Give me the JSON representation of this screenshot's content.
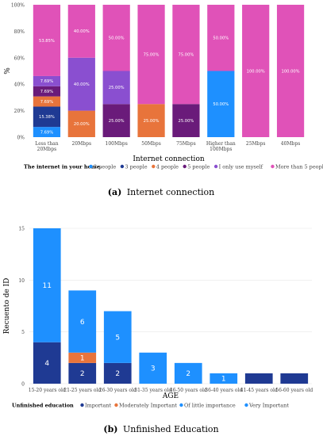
{
  "captions": {
    "a_prefix": "(a)",
    "a_text": "Internet connection",
    "b_prefix": "(b)",
    "b_text": "Unfinished Education"
  },
  "chart_data": [
    {
      "type": "bar",
      "stacked": true,
      "normalized": true,
      "xlabel": "Internet connection",
      "ylabel": "%",
      "ylim": [
        0,
        100
      ],
      "yticks": [
        "0%",
        "20%",
        "40%",
        "60%",
        "80%",
        "100%"
      ],
      "legend_title": "The internet in your home.",
      "legend_position": "bottom",
      "categories": [
        "Less than 20Mbps",
        "20Mbps",
        "100Mbps",
        "50Mbps",
        "75Mbps",
        "Higher than 100Mbps",
        "25Mbps",
        "40Mbps"
      ],
      "series": [
        {
          "name": "2 people",
          "color": "#1e90ff",
          "values": [
            7.69,
            0,
            0,
            0,
            0,
            50.0,
            0,
            0
          ],
          "labels": [
            "7.69%",
            "",
            "",
            "",
            "",
            "50.00%",
            "",
            ""
          ]
        },
        {
          "name": "3 people",
          "color": "#1f3a93",
          "values": [
            15.38,
            0,
            0,
            0,
            0,
            0,
            0,
            0
          ],
          "labels": [
            "15.38%",
            "",
            "",
            "",
            "",
            "",
            "",
            ""
          ]
        },
        {
          "name": "4 people",
          "color": "#e8743b",
          "values": [
            7.69,
            20.0,
            0,
            25.0,
            0,
            0,
            0,
            0
          ],
          "labels": [
            "7.69%",
            "20.00%",
            "",
            "25.00%",
            "",
            "",
            "",
            ""
          ]
        },
        {
          "name": "5 people",
          "color": "#6a1b7a",
          "values": [
            7.69,
            0,
            25.0,
            0,
            25.0,
            0,
            0,
            0
          ],
          "labels": [
            "7.69%",
            "",
            "25.00%",
            "",
            "25.00%",
            "",
            "",
            ""
          ]
        },
        {
          "name": "I only use myself",
          "color": "#8a4fd0",
          "values": [
            7.69,
            40.0,
            25.0,
            0,
            0,
            0,
            0,
            0
          ],
          "labels": [
            "7.69%",
            "40.00%",
            "25.00%",
            "",
            "",
            "",
            "",
            ""
          ]
        },
        {
          "name": "More than 5 people",
          "color": "#e052b8",
          "values": [
            53.85,
            40.0,
            50.0,
            75.0,
            75.0,
            50.0,
            100.0,
            100.0
          ],
          "labels": [
            "53.85%",
            "40.00%",
            "50.00%",
            "75.00%",
            "75.00%",
            "50.00%",
            "100.00%",
            "100.00%"
          ]
        }
      ]
    },
    {
      "type": "bar",
      "stacked": true,
      "xlabel": "AGE",
      "ylabel": "Recuento de ID",
      "ylim": [
        0,
        15
      ],
      "yticks": [
        "0",
        "5",
        "10",
        "15"
      ],
      "grid": true,
      "legend_title": "Unfinished education",
      "legend_position": "bottom",
      "categories": [
        "15-20 years old",
        "21-25 years old",
        "26-30 years old",
        "31-35 years old",
        "46-50 years old",
        "36-40 years old",
        "41-45 years old",
        "56-60 years old"
      ],
      "series": [
        {
          "name": "Important",
          "color": "#1f3a93",
          "values": [
            4,
            2,
            2,
            0,
            0,
            0,
            1,
            1
          ],
          "labels": [
            "4",
            "2",
            "2",
            "",
            "",
            "",
            "",
            ""
          ]
        },
        {
          "name": "Moderately Important",
          "color": "#e8743b",
          "values": [
            0,
            1,
            0,
            0,
            0,
            0,
            0,
            0
          ],
          "labels": [
            "",
            "1",
            "",
            "",
            "",
            "",
            "",
            ""
          ]
        },
        {
          "name": "Of little importance",
          "color": "#1e90ff",
          "values": [
            11,
            6,
            5,
            3,
            2,
            1,
            0,
            0
          ],
          "labels": [
            "11",
            "6",
            "5",
            "3",
            "2",
            "1",
            "",
            ""
          ]
        },
        {
          "name": "Very Important",
          "color": "#1e90ff",
          "values": [
            0,
            0,
            0,
            0,
            0,
            0,
            0,
            0
          ],
          "labels": [
            "",
            "",
            "",
            "",
            "",
            "",
            "",
            ""
          ]
        }
      ]
    }
  ]
}
